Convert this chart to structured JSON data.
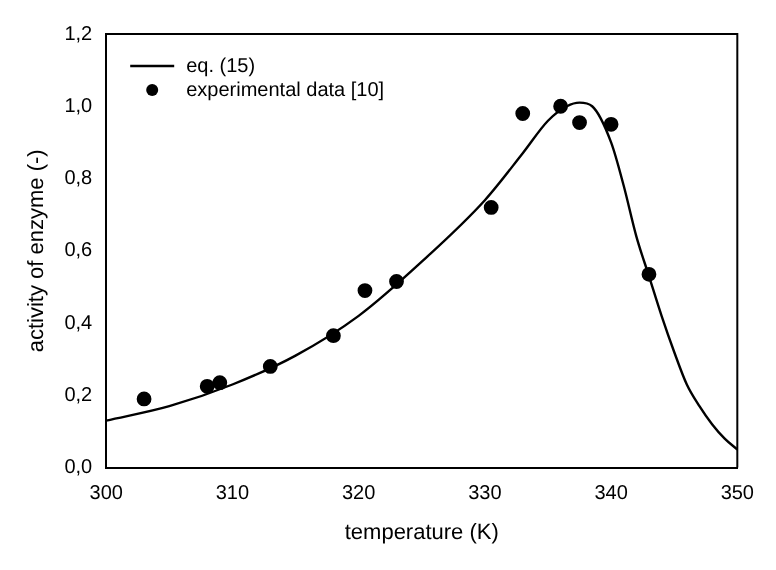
{
  "chart_data": {
    "type": "scatter",
    "xlabel": "temperature (K)",
    "ylabel": "activity of enzyme (-)",
    "xlim": [
      300,
      350
    ],
    "xticks": [
      300,
      310,
      320,
      330,
      340,
      350
    ],
    "ylim": [
      0,
      1.2
    ],
    "yticks": [
      {
        "value": 0,
        "label": "0,0"
      },
      {
        "value": 0.2,
        "label": "0,2"
      },
      {
        "value": 0.4,
        "label": "0,4"
      },
      {
        "value": 0.6,
        "label": "0,6"
      },
      {
        "value": 0.8,
        "label": "0,8"
      },
      {
        "value": 1.0,
        "label": "1,0"
      },
      {
        "value": 1.2,
        "label": "1,2"
      }
    ],
    "grid": false,
    "legend": "top left",
    "series": [
      {
        "name": "eq. (15)",
        "type": "line",
        "color": "#000000",
        "marker": "none",
        "line_style": "solid",
        "x": [
          300,
          305,
          310,
          315,
          320,
          325,
          330,
          333,
          335,
          336.5,
          337.5,
          338.5,
          340,
          341,
          342,
          343,
          344,
          345,
          346,
          347,
          348,
          349,
          350
        ],
        "values": [
          0.13,
          0.17,
          0.23,
          0.31,
          0.42,
          0.57,
          0.74,
          0.87,
          0.96,
          1.0,
          1.01,
          1.0,
          0.9,
          0.78,
          0.64,
          0.53,
          0.42,
          0.32,
          0.23,
          0.17,
          0.12,
          0.08,
          0.05
        ]
      },
      {
        "name": "experimental data [10]",
        "type": "scatter",
        "color": "#000000",
        "marker": "circle",
        "x": [
          303,
          308,
          309,
          313,
          318,
          320.5,
          323,
          330.5,
          333,
          336,
          337.5,
          340,
          343
        ],
        "values": [
          0.19,
          0.225,
          0.235,
          0.28,
          0.365,
          0.49,
          0.515,
          0.72,
          0.98,
          1.0,
          0.955,
          0.95,
          0.535
        ]
      }
    ]
  }
}
